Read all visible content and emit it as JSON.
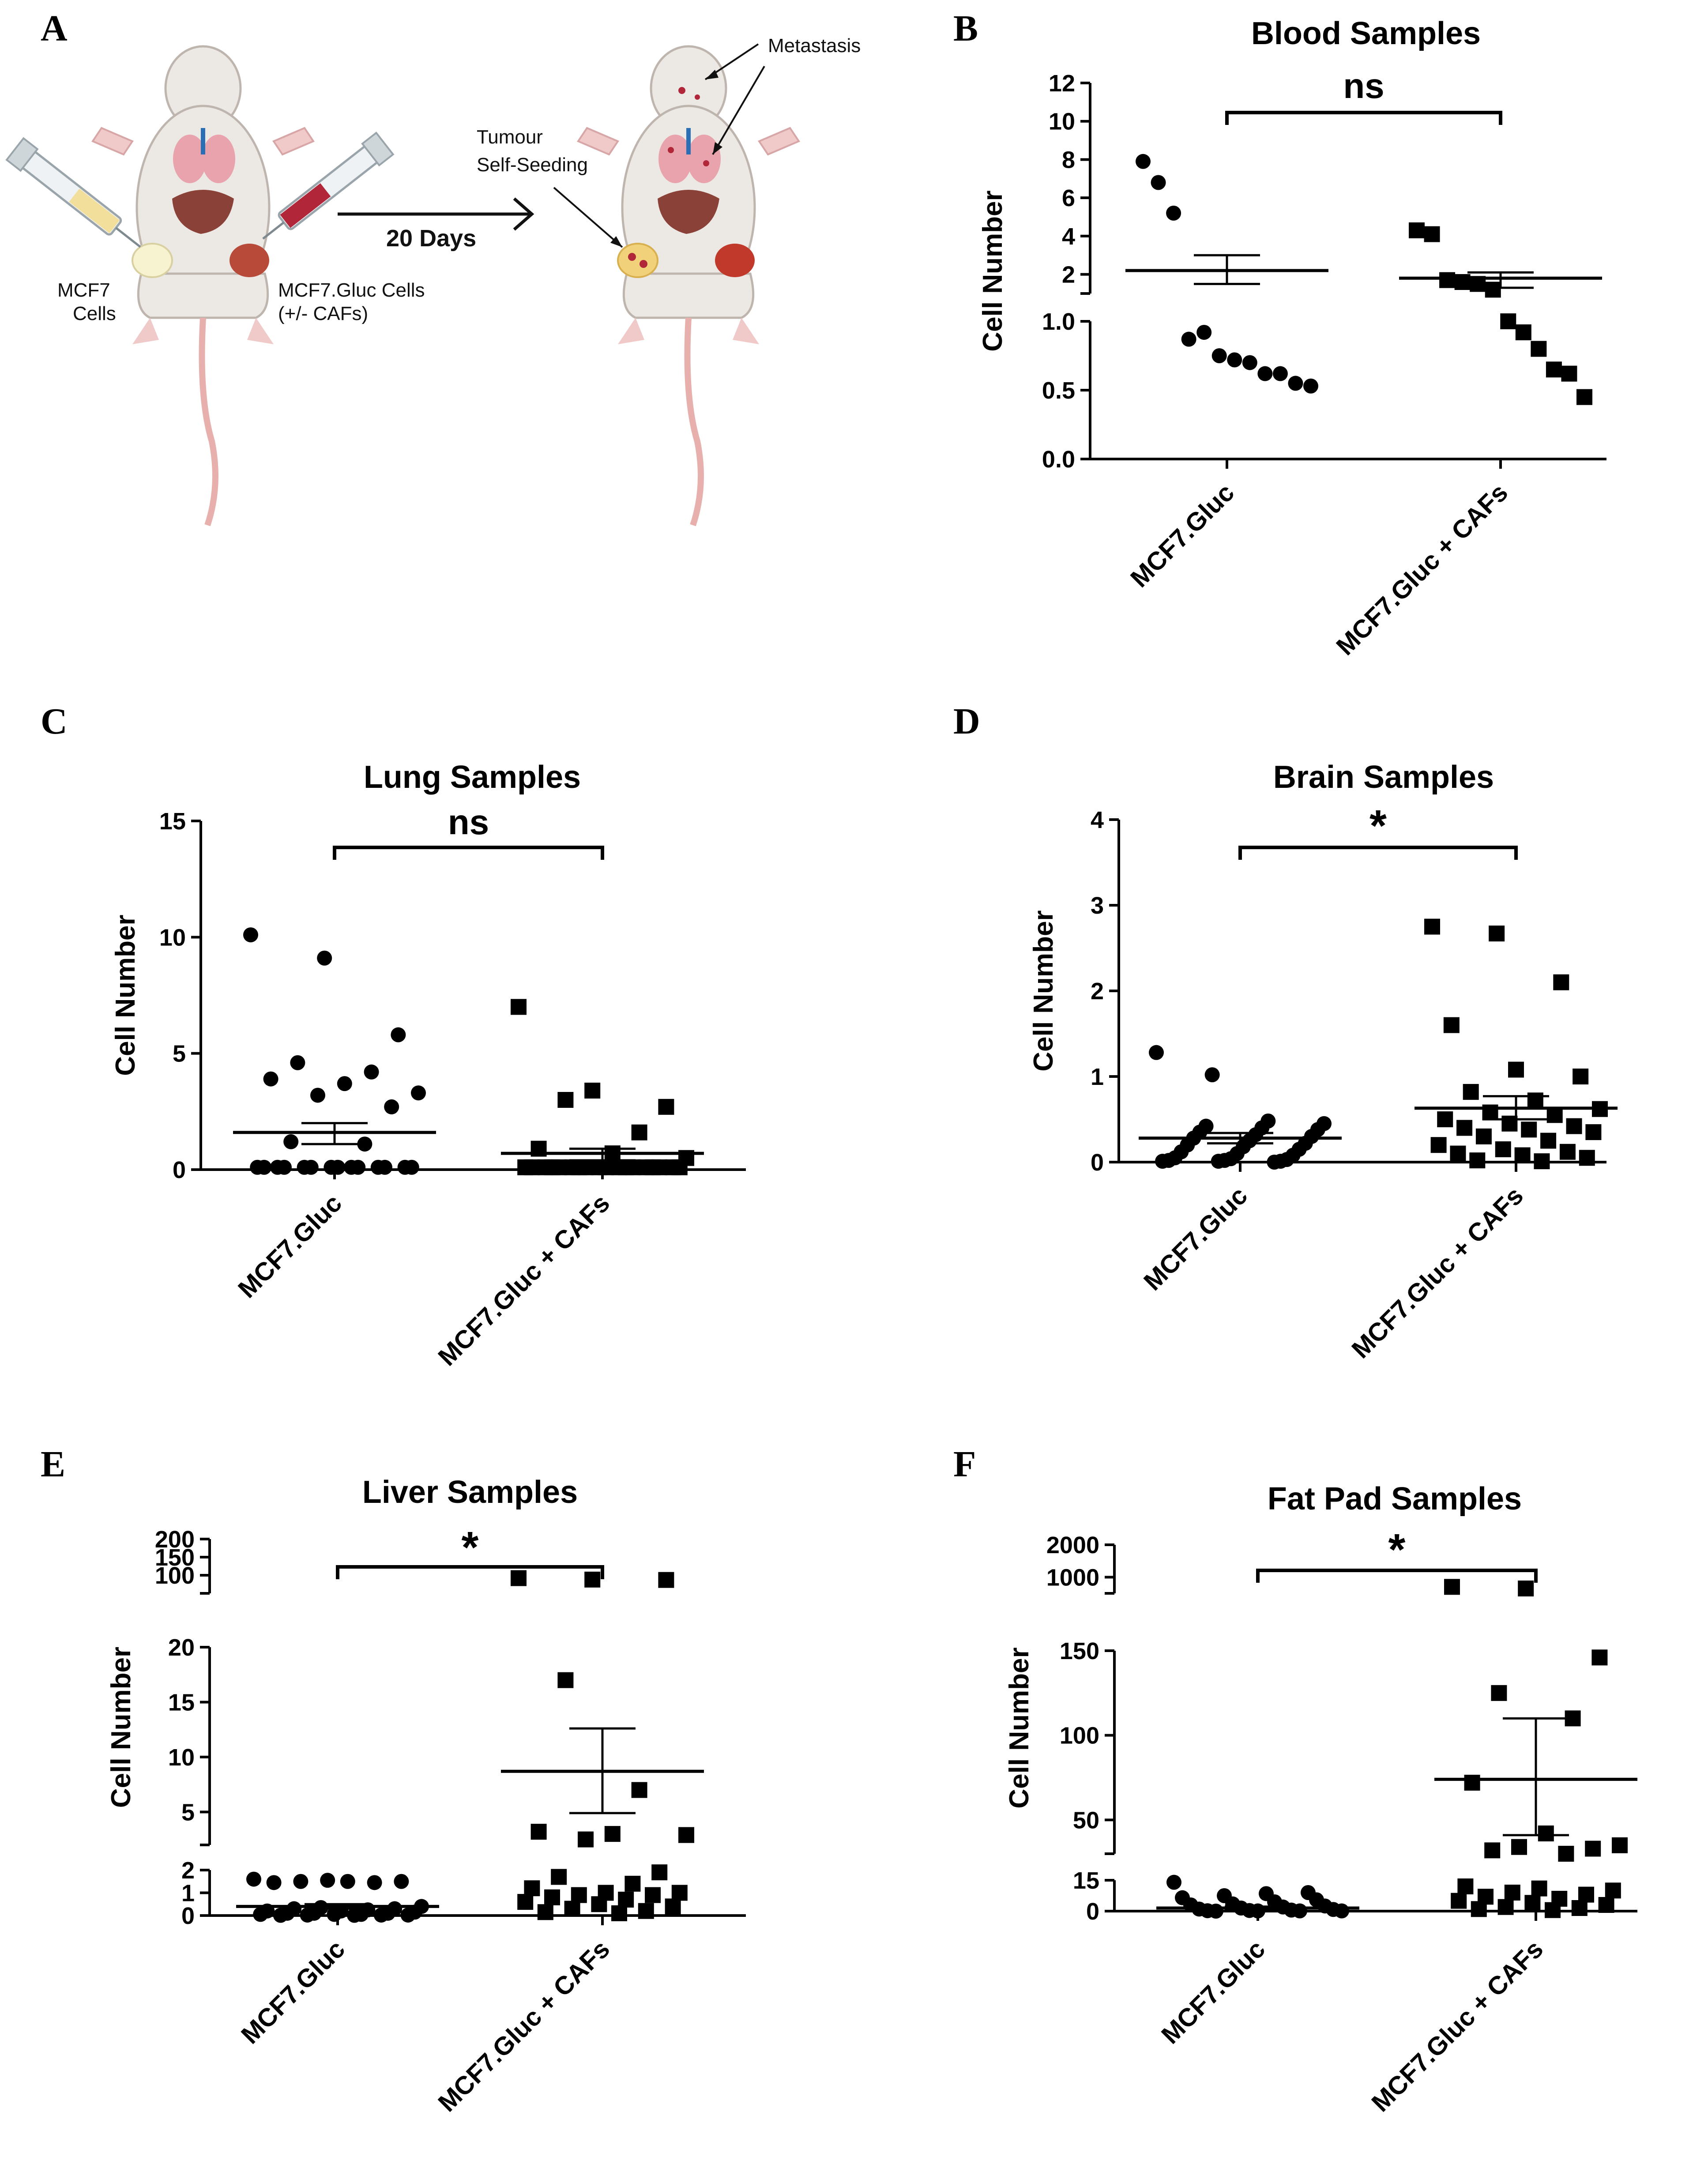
{
  "panel_letters": [
    "A",
    "B",
    "C",
    "D",
    "E",
    "F"
  ],
  "schematic": {
    "left_label_1": "MCF7",
    "left_label_2": "Cells",
    "right_label_1": "MCF7.Gluc Cells",
    "right_label_2": "(+/- CAFs)",
    "arrow_label": "20 Days",
    "annotation_metastasis": "Metastasis",
    "annotation_seeding_1": "Tumour",
    "annotation_seeding_2": "Self-Seeding"
  },
  "colors": {
    "ink": "#000000",
    "mouse_body": "#ece8e4",
    "organ_lung": "#e8a3ad",
    "organ_liver": "#8a4238",
    "tumour": "#b84a3a",
    "syringe_fill_left": "#f1df9b",
    "syringe_fill_right": "#b2263a"
  },
  "chart_data": [
    {
      "type": "scatter",
      "panel": "B",
      "title": "Blood Samples",
      "ylabel": "Cell Number",
      "categories": [
        "MCF7.Gluc",
        "MCF7.Gluc + CAFs"
      ],
      "significance": "ns",
      "axis_segments": [
        {
          "range": [
            0,
            1.0
          ],
          "ticks": [
            0.0,
            0.5,
            1.0
          ],
          "labels": [
            "0.0",
            "0.5",
            "1.0"
          ]
        },
        {
          "range": [
            1,
            12
          ],
          "ticks": [
            2,
            4,
            6,
            8,
            10,
            12
          ],
          "labels": [
            "2",
            "4",
            "6",
            "8",
            "10",
            "12"
          ]
        }
      ],
      "series": [
        {
          "name": "MCF7.Gluc",
          "marker": "circle",
          "values": [
            7.9,
            6.8,
            5.2,
            0.87,
            0.92,
            0.75,
            0.72,
            0.7,
            0.62,
            0.62,
            0.55,
            0.53
          ],
          "mean": 2.2,
          "sem_low": 1.5,
          "sem_high": 3.0
        },
        {
          "name": "MCF7.Gluc + CAFs",
          "marker": "square",
          "values": [
            4.3,
            4.1,
            1.7,
            1.6,
            1.5,
            1.2,
            1.0,
            0.92,
            0.8,
            0.65,
            0.62,
            0.45
          ],
          "mean": 1.8,
          "sem_low": 1.3,
          "sem_high": 2.1
        }
      ]
    },
    {
      "type": "scatter",
      "panel": "C",
      "title": "Lung Samples",
      "ylabel": "Cell Number",
      "categories": [
        "MCF7.Gluc",
        "MCF7.Gluc + CAFs"
      ],
      "significance": "ns",
      "axis_segments": [
        {
          "range": [
            0,
            15
          ],
          "ticks": [
            0,
            5,
            10,
            15
          ],
          "labels": [
            "0",
            "5",
            "10",
            "15"
          ]
        }
      ],
      "series": [
        {
          "name": "MCF7.Gluc",
          "marker": "circle",
          "values": [
            10.1,
            9.1,
            5.8,
            4.6,
            4.2,
            3.9,
            3.7,
            3.3,
            3.2,
            2.7,
            1.2,
            1.1,
            0.1,
            0.1,
            0.1,
            0.1,
            0.1,
            0.1,
            0.1,
            0.1,
            0.1,
            0.1,
            0.1,
            0.1,
            0.1,
            0.1
          ],
          "mean": 1.6,
          "sem_low": 1.1,
          "sem_high": 2.0
        },
        {
          "name": "MCF7.Gluc + CAFs",
          "marker": "square",
          "values": [
            7.0,
            3.4,
            2.7,
            3.0,
            1.6,
            0.9,
            0.7,
            0.5,
            0.1,
            0.1,
            0.1,
            0.1,
            0.1,
            0.1,
            0.1,
            0.1,
            0.1,
            0.1,
            0.1,
            0.1,
            0.1,
            0.1,
            0.1,
            0.1,
            0.1,
            0.1
          ],
          "mean": 0.7,
          "sem_low": 0.4,
          "sem_high": 0.9
        }
      ]
    },
    {
      "type": "scatter",
      "panel": "D",
      "title": "Brain Samples",
      "ylabel": "Cell Number",
      "categories": [
        "MCF7.Gluc",
        "MCF7.Gluc + CAFs"
      ],
      "significance": "*",
      "axis_segments": [
        {
          "range": [
            0,
            4
          ],
          "ticks": [
            0,
            1,
            2,
            3,
            4
          ],
          "labels": [
            "0",
            "1",
            "2",
            "3",
            "4"
          ]
        }
      ],
      "series": [
        {
          "name": "MCF7.Gluc",
          "marker": "circle",
          "values": [
            1.28,
            1.02,
            0.48,
            0.45,
            0.42,
            0.4,
            0.38,
            0.35,
            0.32,
            0.3,
            0.28,
            0.25,
            0.22,
            0.2,
            0.18,
            0.15,
            0.12,
            0.1,
            0.08,
            0.05,
            0.04,
            0.03,
            0.02,
            0.02,
            0.01,
            0.01,
            0.01,
            0.0
          ],
          "mean": 0.28,
          "sem_low": 0.22,
          "sem_high": 0.34
        },
        {
          "name": "MCF7.Gluc + CAFs",
          "marker": "square",
          "values": [
            2.75,
            2.67,
            2.1,
            1.6,
            1.08,
            1.0,
            0.82,
            0.72,
            0.62,
            0.58,
            0.55,
            0.5,
            0.45,
            0.42,
            0.4,
            0.38,
            0.35,
            0.3,
            0.25,
            0.2,
            0.15,
            0.12,
            0.1,
            0.08,
            0.05,
            0.02,
            0.01
          ],
          "mean": 0.63,
          "sem_low": 0.5,
          "sem_high": 0.77
        }
      ]
    },
    {
      "type": "scatter",
      "panel": "E",
      "title": "Liver Samples",
      "ylabel": "Cell Number",
      "categories": [
        "MCF7.Gluc",
        "MCF7.Gluc + CAFs"
      ],
      "significance": "*",
      "axis_segments": [
        {
          "range": [
            0,
            2
          ],
          "ticks": [
            0,
            1,
            2
          ],
          "labels": [
            "0",
            "1",
            "2"
          ]
        },
        {
          "range": [
            2,
            20
          ],
          "ticks": [
            5,
            10,
            15,
            20
          ],
          "labels": [
            "5",
            "10",
            "15",
            "20"
          ]
        },
        {
          "range": [
            50,
            200
          ],
          "ticks": [
            100,
            150,
            200
          ],
          "labels": [
            "100",
            "150",
            "200"
          ]
        }
      ],
      "series": [
        {
          "name": "MCF7.Gluc",
          "marker": "circle",
          "values": [
            1.6,
            1.55,
            1.5,
            1.5,
            1.45,
            1.45,
            1.5,
            0.4,
            0.35,
            0.3,
            0.3,
            0.25,
            0.2,
            0.2,
            0.15,
            0.1,
            0.1,
            0.1,
            0.05,
            0.05,
            0.05,
            0.02,
            0.02,
            0.02,
            0.01,
            0.01
          ],
          "mean": 0.4,
          "sem_low": 0.3,
          "sem_high": 0.5
        },
        {
          "name": "MCF7.Gluc + CAFs",
          "marker": "square",
          "values": [
            92,
            88,
            87,
            17,
            7,
            3.2,
            3.0,
            2.9,
            2.5,
            1.9,
            1.7,
            1.4,
            1.2,
            1.0,
            1.0,
            0.9,
            0.9,
            0.8,
            0.7,
            0.6,
            0.5,
            0.4,
            0.3,
            0.2,
            0.15,
            0.1
          ],
          "mean": 8.7,
          "sem_low": 4.9,
          "sem_high": 12.6
        }
      ]
    },
    {
      "type": "scatter",
      "panel": "F",
      "title": "Fat Pad Samples",
      "ylabel": "Cell Number",
      "categories": [
        "MCF7.Gluc",
        "MCF7.Gluc + CAFs"
      ],
      "significance": "*",
      "axis_segments": [
        {
          "range": [
            0,
            15
          ],
          "ticks": [
            0,
            15
          ],
          "labels": [
            "0",
            "15"
          ]
        },
        {
          "range": [
            30,
            150
          ],
          "ticks": [
            50,
            100,
            150
          ],
          "labels": [
            "50",
            "100",
            "150"
          ]
        },
        {
          "range": [
            500,
            2000
          ],
          "ticks": [
            1000,
            2000
          ],
          "labels": [
            "1000",
            "2000"
          ]
        }
      ],
      "series": [
        {
          "name": "MCF7.Gluc",
          "marker": "circle",
          "values": [
            14,
            9,
            8.5,
            7.5,
            6.5,
            5.5,
            4.5,
            3.5,
            3.0,
            2.5,
            2.0,
            1.5,
            1.0,
            0.8,
            0.5,
            0.3,
            0.2,
            0.1,
            0.1,
            0.1,
            0.0
          ],
          "mean": 1.5,
          "sem_low": 0.8,
          "sem_high": 2.2
        },
        {
          "name": "MCF7.Gluc + CAFs",
          "marker": "square",
          "values": [
            700,
            650,
            146,
            125,
            110,
            72,
            42,
            35,
            34,
            33,
            32,
            30,
            12,
            11,
            10,
            9,
            8,
            7,
            6,
            5,
            4,
            3,
            2,
            1.5,
            1,
            0.5
          ],
          "mean": 74,
          "sem_low": 41,
          "sem_high": 110
        }
      ]
    }
  ]
}
